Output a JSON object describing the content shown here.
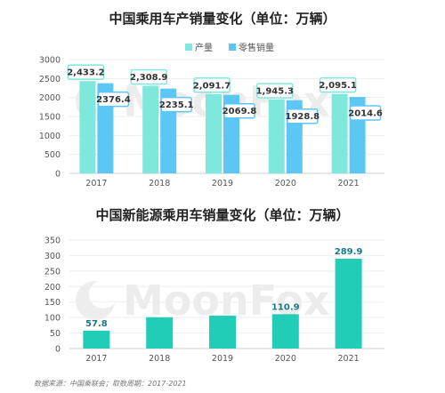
{
  "chart_data": [
    {
      "type": "bar",
      "title": "中国乘用车产销量变化（单位：万辆）",
      "categories": [
        "2017",
        "2018",
        "2019",
        "2020",
        "2021"
      ],
      "series": [
        {
          "name": "产量",
          "values": [
            2433.2,
            2308.9,
            2091.7,
            1945.3,
            2095.1
          ],
          "labels": [
            "2,433.2",
            "2,308.9",
            "2,091.7",
            "1,945.3",
            "2,095.1"
          ],
          "color": "#7ee8dc"
        },
        {
          "name": "零售销量",
          "values": [
            2376.4,
            2235.1,
            2069.8,
            1928.8,
            2014.6
          ],
          "labels": [
            "2376.4",
            "2235.1",
            "2069.8",
            "1928.8",
            "2014.6"
          ],
          "color": "#5cc7f5"
        }
      ],
      "yticks": [
        "0",
        "500",
        "1000",
        "1500",
        "2000",
        "2500",
        "3000"
      ],
      "ylim": [
        0,
        3000
      ],
      "grid": true,
      "legend": "top-center"
    },
    {
      "type": "bar",
      "title": "中国新能源乘用车销量变化（单位：万辆）",
      "categories": [
        "2017",
        "2018",
        "2019",
        "2020",
        "2021"
      ],
      "series": [
        {
          "values": [
            57.8,
            101.0,
            106.0,
            110.9,
            289.9
          ],
          "labels": [
            "57.8",
            "",
            "",
            "110.9",
            "289.9"
          ],
          "color": "#22cdb8"
        }
      ],
      "yticks": [
        "0",
        "50",
        "100",
        "150",
        "200",
        "250",
        "300",
        "350"
      ],
      "ylim": [
        0,
        350
      ],
      "grid": true
    }
  ],
  "watermark": "MoonFox",
  "source": "数据来源：中国乘联会；取数周期：2017-2021"
}
